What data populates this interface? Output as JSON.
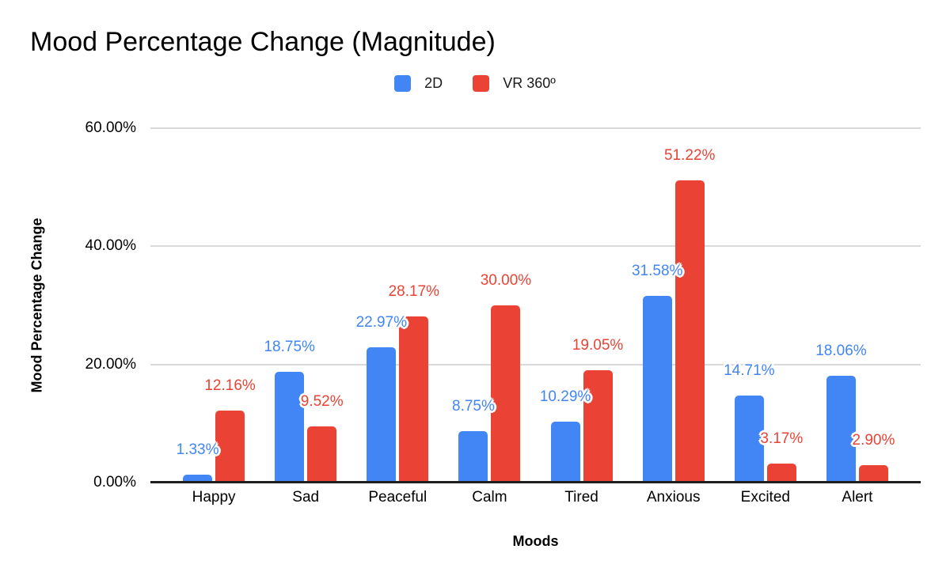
{
  "chart_data": {
    "type": "bar",
    "title": "Mood Percentage Change (Magnitude)",
    "xlabel": "Moods",
    "ylabel": "Mood Percentage Change",
    "categories": [
      "Happy",
      "Sad",
      "Peaceful",
      "Calm",
      "Tired",
      "Anxious",
      "Excited",
      "Alert"
    ],
    "series": [
      {
        "name": "2D",
        "color": "#4285F4",
        "values": [
          1.33,
          18.75,
          22.97,
          8.75,
          10.29,
          31.58,
          14.71,
          18.06
        ],
        "labels": [
          "1.33%",
          "18.75%",
          "22.97%",
          "8.75%",
          "10.29%",
          "31.58%",
          "14.71%",
          "18.06%"
        ]
      },
      {
        "name": "VR 360º",
        "color": "#EA4335",
        "values": [
          12.16,
          9.52,
          28.17,
          30.0,
          19.05,
          51.22,
          3.17,
          2.9
        ],
        "labels": [
          "12.16%",
          "9.52%",
          "28.17%",
          "30.00%",
          "19.05%",
          "51.22%",
          "3.17%",
          "2.90%"
        ]
      }
    ],
    "y_axis": {
      "min": 0,
      "max": 60,
      "ticks": [
        {
          "label": "0.00%",
          "value": 0
        },
        {
          "label": "20.00%",
          "value": 20
        },
        {
          "label": "40.00%",
          "value": 40
        },
        {
          "label": "60.00%",
          "value": 60
        }
      ]
    },
    "grid": true,
    "legend_position": "top",
    "data_labels": true,
    "colors": {
      "background": "#ffffff",
      "gridline": "#d9d9d9",
      "axis_line": "#1f1f1f",
      "text": "#000000"
    }
  }
}
